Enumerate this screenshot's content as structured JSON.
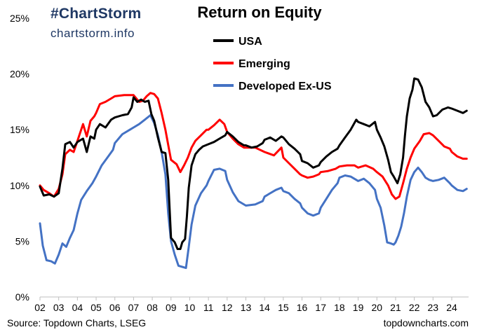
{
  "branding": {
    "hashtag": "#ChartStorm",
    "site": "chartstorm.info"
  },
  "footer": {
    "source": "Source: Topdown Charts, LSEG",
    "credit": "topdowncharts.com"
  },
  "chart_data": {
    "type": "line",
    "title": "Return on Equity",
    "xlabel": "",
    "ylabel": "",
    "ylim": [
      0,
      25
    ],
    "xlim": [
      2002,
      2024.9
    ],
    "y_ticks": [
      "0%",
      "5%",
      "10%",
      "15%",
      "20%",
      "25%"
    ],
    "x_ticks": [
      "02",
      "03",
      "04",
      "05",
      "06",
      "07",
      "08",
      "09",
      "10",
      "11",
      "12",
      "13",
      "14",
      "15",
      "16",
      "17",
      "18",
      "19",
      "20",
      "21",
      "22",
      "23",
      "24"
    ],
    "grid": false,
    "legend_position": "top-center",
    "series": [
      {
        "name": "USA",
        "color": "#000000",
        "points": [
          [
            2002.0,
            9.9
          ],
          [
            2002.2,
            9.1
          ],
          [
            2002.5,
            9.2
          ],
          [
            2002.75,
            9.0
          ],
          [
            2003.0,
            9.3
          ],
          [
            2003.2,
            11.5
          ],
          [
            2003.35,
            13.7
          ],
          [
            2003.6,
            13.9
          ],
          [
            2003.8,
            13.4
          ],
          [
            2004.0,
            13.9
          ],
          [
            2004.3,
            14.2
          ],
          [
            2004.5,
            13.0
          ],
          [
            2004.7,
            14.4
          ],
          [
            2004.9,
            14.2
          ],
          [
            2005.0,
            15.0
          ],
          [
            2005.2,
            15.5
          ],
          [
            2005.5,
            15.2
          ],
          [
            2005.8,
            15.9
          ],
          [
            2006.0,
            16.1
          ],
          [
            2006.4,
            16.3
          ],
          [
            2006.7,
            16.4
          ],
          [
            2006.9,
            17.0
          ],
          [
            2007.0,
            17.9
          ],
          [
            2007.2,
            17.5
          ],
          [
            2007.4,
            17.7
          ],
          [
            2007.6,
            17.5
          ],
          [
            2007.8,
            17.6
          ],
          [
            2007.95,
            16.4
          ],
          [
            2008.1,
            15.8
          ],
          [
            2008.3,
            14.3
          ],
          [
            2008.5,
            13.0
          ],
          [
            2008.7,
            12.9
          ],
          [
            2008.85,
            10.5
          ],
          [
            2009.0,
            5.3
          ],
          [
            2009.2,
            4.9
          ],
          [
            2009.35,
            4.3
          ],
          [
            2009.5,
            4.3
          ],
          [
            2009.6,
            4.9
          ],
          [
            2009.75,
            5.2
          ],
          [
            2009.85,
            7.2
          ],
          [
            2009.95,
            9.8
          ],
          [
            2010.1,
            11.8
          ],
          [
            2010.3,
            12.8
          ],
          [
            2010.5,
            13.2
          ],
          [
            2010.7,
            13.5
          ],
          [
            2011.0,
            13.7
          ],
          [
            2011.3,
            13.9
          ],
          [
            2011.6,
            14.2
          ],
          [
            2011.9,
            14.5
          ],
          [
            2012.0,
            14.8
          ],
          [
            2012.3,
            14.4
          ],
          [
            2012.6,
            13.9
          ],
          [
            2012.9,
            13.6
          ],
          [
            2013.0,
            13.6
          ],
          [
            2013.3,
            13.4
          ],
          [
            2013.6,
            13.5
          ],
          [
            2013.9,
            13.8
          ],
          [
            2014.0,
            14.1
          ],
          [
            2014.3,
            14.3
          ],
          [
            2014.6,
            14.0
          ],
          [
            2014.9,
            14.4
          ],
          [
            2015.0,
            14.3
          ],
          [
            2015.3,
            13.7
          ],
          [
            2015.6,
            13.3
          ],
          [
            2015.9,
            12.8
          ],
          [
            2016.0,
            12.2
          ],
          [
            2016.3,
            12.0
          ],
          [
            2016.6,
            11.6
          ],
          [
            2016.9,
            11.8
          ],
          [
            2017.0,
            12.1
          ],
          [
            2017.3,
            12.6
          ],
          [
            2017.6,
            13.0
          ],
          [
            2017.9,
            13.3
          ],
          [
            2018.0,
            13.6
          ],
          [
            2018.3,
            14.3
          ],
          [
            2018.6,
            15.0
          ],
          [
            2018.9,
            15.9
          ],
          [
            2019.0,
            15.7
          ],
          [
            2019.3,
            15.5
          ],
          [
            2019.6,
            15.3
          ],
          [
            2019.9,
            15.7
          ],
          [
            2020.0,
            15.0
          ],
          [
            2020.2,
            14.3
          ],
          [
            2020.4,
            13.5
          ],
          [
            2020.6,
            12.3
          ],
          [
            2020.75,
            11.2
          ],
          [
            2020.9,
            10.8
          ],
          [
            2021.0,
            10.5
          ],
          [
            2021.1,
            10.2
          ],
          [
            2021.25,
            11.0
          ],
          [
            2021.4,
            12.5
          ],
          [
            2021.5,
            14.5
          ],
          [
            2021.6,
            16.2
          ],
          [
            2021.75,
            17.8
          ],
          [
            2021.9,
            18.6
          ],
          [
            2022.0,
            19.6
          ],
          [
            2022.2,
            19.5
          ],
          [
            2022.4,
            18.8
          ],
          [
            2022.6,
            17.5
          ],
          [
            2022.8,
            17.0
          ],
          [
            2023.0,
            16.2
          ],
          [
            2023.2,
            16.3
          ],
          [
            2023.5,
            16.8
          ],
          [
            2023.8,
            17.0
          ],
          [
            2024.0,
            16.9
          ],
          [
            2024.3,
            16.7
          ],
          [
            2024.6,
            16.5
          ],
          [
            2024.8,
            16.7
          ]
        ]
      },
      {
        "name": "Emerging",
        "color": "#ff0000",
        "points": [
          [
            2002.0,
            10.0
          ],
          [
            2002.2,
            9.6
          ],
          [
            2002.5,
            9.3
          ],
          [
            2002.75,
            9.0
          ],
          [
            2003.0,
            9.7
          ],
          [
            2003.2,
            11.0
          ],
          [
            2003.35,
            12.8
          ],
          [
            2003.6,
            13.2
          ],
          [
            2003.8,
            13.0
          ],
          [
            2004.0,
            14.0
          ],
          [
            2004.3,
            15.5
          ],
          [
            2004.5,
            14.4
          ],
          [
            2004.7,
            15.8
          ],
          [
            2004.9,
            16.2
          ],
          [
            2005.0,
            16.5
          ],
          [
            2005.2,
            17.3
          ],
          [
            2005.5,
            17.5
          ],
          [
            2005.8,
            17.8
          ],
          [
            2006.0,
            18.0
          ],
          [
            2006.5,
            18.1
          ],
          [
            2007.0,
            18.1
          ],
          [
            2007.3,
            17.5
          ],
          [
            2007.5,
            17.6
          ],
          [
            2007.7,
            18.0
          ],
          [
            2007.9,
            18.3
          ],
          [
            2008.1,
            18.2
          ],
          [
            2008.3,
            17.8
          ],
          [
            2008.5,
            16.5
          ],
          [
            2008.7,
            15.0
          ],
          [
            2008.9,
            13.2
          ],
          [
            2009.0,
            12.3
          ],
          [
            2009.3,
            11.9
          ],
          [
            2009.5,
            11.2
          ],
          [
            2009.7,
            11.8
          ],
          [
            2009.9,
            12.5
          ],
          [
            2010.1,
            13.4
          ],
          [
            2010.3,
            14.0
          ],
          [
            2010.6,
            14.5
          ],
          [
            2010.9,
            15.0
          ],
          [
            2011.0,
            15.0
          ],
          [
            2011.3,
            15.4
          ],
          [
            2011.6,
            15.9
          ],
          [
            2011.85,
            15.5
          ],
          [
            2012.0,
            14.8
          ],
          [
            2012.3,
            14.2
          ],
          [
            2012.6,
            13.7
          ],
          [
            2012.9,
            13.4
          ],
          [
            2013.0,
            13.4
          ],
          [
            2013.5,
            13.4
          ],
          [
            2014.0,
            13.0
          ],
          [
            2014.5,
            12.7
          ],
          [
            2014.9,
            13.4
          ],
          [
            2015.0,
            12.5
          ],
          [
            2015.3,
            12.0
          ],
          [
            2015.6,
            11.5
          ],
          [
            2015.9,
            11.0
          ],
          [
            2016.0,
            10.9
          ],
          [
            2016.3,
            10.7
          ],
          [
            2016.6,
            10.8
          ],
          [
            2016.9,
            11.0
          ],
          [
            2017.0,
            11.2
          ],
          [
            2017.4,
            11.3
          ],
          [
            2017.8,
            11.5
          ],
          [
            2018.0,
            11.7
          ],
          [
            2018.4,
            11.8
          ],
          [
            2018.8,
            11.8
          ],
          [
            2019.0,
            11.6
          ],
          [
            2019.4,
            11.8
          ],
          [
            2019.8,
            11.5
          ],
          [
            2020.0,
            11.2
          ],
          [
            2020.3,
            10.8
          ],
          [
            2020.6,
            10.0
          ],
          [
            2020.8,
            9.2
          ],
          [
            2021.0,
            8.8
          ],
          [
            2021.2,
            9.0
          ],
          [
            2021.4,
            10.2
          ],
          [
            2021.6,
            11.5
          ],
          [
            2021.8,
            12.5
          ],
          [
            2022.0,
            13.3
          ],
          [
            2022.3,
            14.0
          ],
          [
            2022.5,
            14.6
          ],
          [
            2022.8,
            14.7
          ],
          [
            2023.0,
            14.5
          ],
          [
            2023.3,
            14.0
          ],
          [
            2023.6,
            13.5
          ],
          [
            2023.9,
            13.3
          ],
          [
            2024.0,
            13.0
          ],
          [
            2024.3,
            12.6
          ],
          [
            2024.6,
            12.4
          ],
          [
            2024.8,
            12.4
          ]
        ]
      },
      {
        "name": "Developed Ex-US",
        "color": "#4472c4",
        "points": [
          [
            2002.0,
            6.6
          ],
          [
            2002.15,
            4.6
          ],
          [
            2002.35,
            3.3
          ],
          [
            2002.6,
            3.2
          ],
          [
            2002.8,
            3.0
          ],
          [
            2003.0,
            3.8
          ],
          [
            2003.2,
            4.8
          ],
          [
            2003.4,
            4.5
          ],
          [
            2003.6,
            5.3
          ],
          [
            2003.8,
            6.0
          ],
          [
            2004.0,
            7.5
          ],
          [
            2004.2,
            8.7
          ],
          [
            2004.5,
            9.5
          ],
          [
            2004.8,
            10.2
          ],
          [
            2005.0,
            10.8
          ],
          [
            2005.3,
            11.8
          ],
          [
            2005.6,
            12.5
          ],
          [
            2005.9,
            13.2
          ],
          [
            2006.0,
            13.8
          ],
          [
            2006.4,
            14.6
          ],
          [
            2006.8,
            15.0
          ],
          [
            2007.0,
            15.2
          ],
          [
            2007.3,
            15.5
          ],
          [
            2007.6,
            15.9
          ],
          [
            2007.9,
            16.3
          ],
          [
            2008.1,
            15.6
          ],
          [
            2008.3,
            14.5
          ],
          [
            2008.5,
            13.0
          ],
          [
            2008.7,
            11.0
          ],
          [
            2008.85,
            7.5
          ],
          [
            2009.0,
            5.0
          ],
          [
            2009.2,
            3.8
          ],
          [
            2009.4,
            2.8
          ],
          [
            2009.6,
            2.7
          ],
          [
            2009.8,
            2.6
          ],
          [
            2009.95,
            4.5
          ],
          [
            2010.1,
            6.5
          ],
          [
            2010.3,
            8.2
          ],
          [
            2010.6,
            9.3
          ],
          [
            2010.9,
            10.0
          ],
          [
            2011.0,
            10.4
          ],
          [
            2011.3,
            11.4
          ],
          [
            2011.6,
            11.5
          ],
          [
            2011.9,
            11.3
          ],
          [
            2012.0,
            10.5
          ],
          [
            2012.3,
            9.4
          ],
          [
            2012.6,
            8.6
          ],
          [
            2012.9,
            8.3
          ],
          [
            2013.0,
            8.2
          ],
          [
            2013.5,
            8.3
          ],
          [
            2013.9,
            8.6
          ],
          [
            2014.0,
            9.0
          ],
          [
            2014.3,
            9.3
          ],
          [
            2014.6,
            9.6
          ],
          [
            2014.9,
            9.8
          ],
          [
            2015.0,
            9.5
          ],
          [
            2015.3,
            9.3
          ],
          [
            2015.6,
            8.8
          ],
          [
            2015.9,
            8.4
          ],
          [
            2016.0,
            8.0
          ],
          [
            2016.3,
            7.5
          ],
          [
            2016.6,
            7.3
          ],
          [
            2016.9,
            7.5
          ],
          [
            2017.0,
            8.0
          ],
          [
            2017.3,
            8.8
          ],
          [
            2017.6,
            9.6
          ],
          [
            2017.9,
            10.2
          ],
          [
            2018.0,
            10.7
          ],
          [
            2018.3,
            10.9
          ],
          [
            2018.6,
            10.8
          ],
          [
            2018.9,
            10.5
          ],
          [
            2019.0,
            10.4
          ],
          [
            2019.3,
            10.6
          ],
          [
            2019.6,
            10.2
          ],
          [
            2019.9,
            9.6
          ],
          [
            2020.0,
            8.8
          ],
          [
            2020.2,
            8.0
          ],
          [
            2020.4,
            6.4
          ],
          [
            2020.55,
            4.9
          ],
          [
            2020.75,
            4.8
          ],
          [
            2020.9,
            4.7
          ],
          [
            2021.0,
            4.9
          ],
          [
            2021.15,
            5.5
          ],
          [
            2021.3,
            6.3
          ],
          [
            2021.45,
            7.5
          ],
          [
            2021.6,
            9.0
          ],
          [
            2021.8,
            10.5
          ],
          [
            2022.0,
            11.2
          ],
          [
            2022.2,
            11.6
          ],
          [
            2022.4,
            11.2
          ],
          [
            2022.6,
            10.7
          ],
          [
            2022.8,
            10.5
          ],
          [
            2023.0,
            10.4
          ],
          [
            2023.3,
            10.5
          ],
          [
            2023.6,
            10.7
          ],
          [
            2023.9,
            10.2
          ],
          [
            2024.0,
            10.0
          ],
          [
            2024.3,
            9.6
          ],
          [
            2024.6,
            9.5
          ],
          [
            2024.8,
            9.7
          ]
        ]
      }
    ]
  }
}
